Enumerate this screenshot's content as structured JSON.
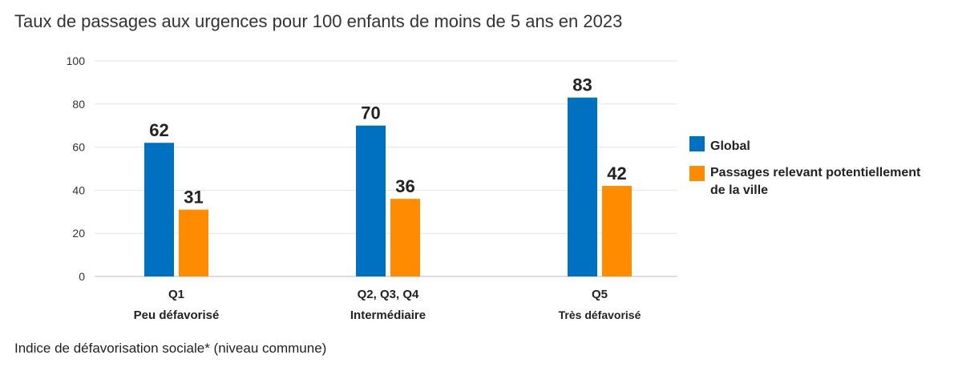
{
  "chart_data": {
    "type": "bar",
    "title": "Taux de passages aux urgences pour 100 enfants de moins de 5 ans en 2023",
    "xlabel": "Indice de défavorisation sociale* (niveau commune)",
    "ylabel": "",
    "ylim": [
      0,
      100
    ],
    "yticks": [
      0,
      20,
      40,
      60,
      80,
      100
    ],
    "grid": true,
    "legend_position": "right",
    "categories": [
      {
        "line1": "Q1",
        "line2": "Peu défavorisé"
      },
      {
        "line1": "Q2, Q3, Q4",
        "line2": "Intermédiaire"
      },
      {
        "line1": "Q5",
        "line2": "Très défavorisé"
      }
    ],
    "series": [
      {
        "name": "Global",
        "color": "#0070c0",
        "values": [
          62,
          70,
          83
        ],
        "labels": [
          "62",
          "70",
          "83"
        ]
      },
      {
        "name": "Passages relevant potentiellement de la ville",
        "legend_lines": [
          "Passages relevant potentiellement",
          "de la ville"
        ],
        "color": "#ff8c00",
        "values": [
          31,
          36,
          42
        ],
        "labels": [
          "31",
          "36",
          "42"
        ]
      }
    ]
  }
}
